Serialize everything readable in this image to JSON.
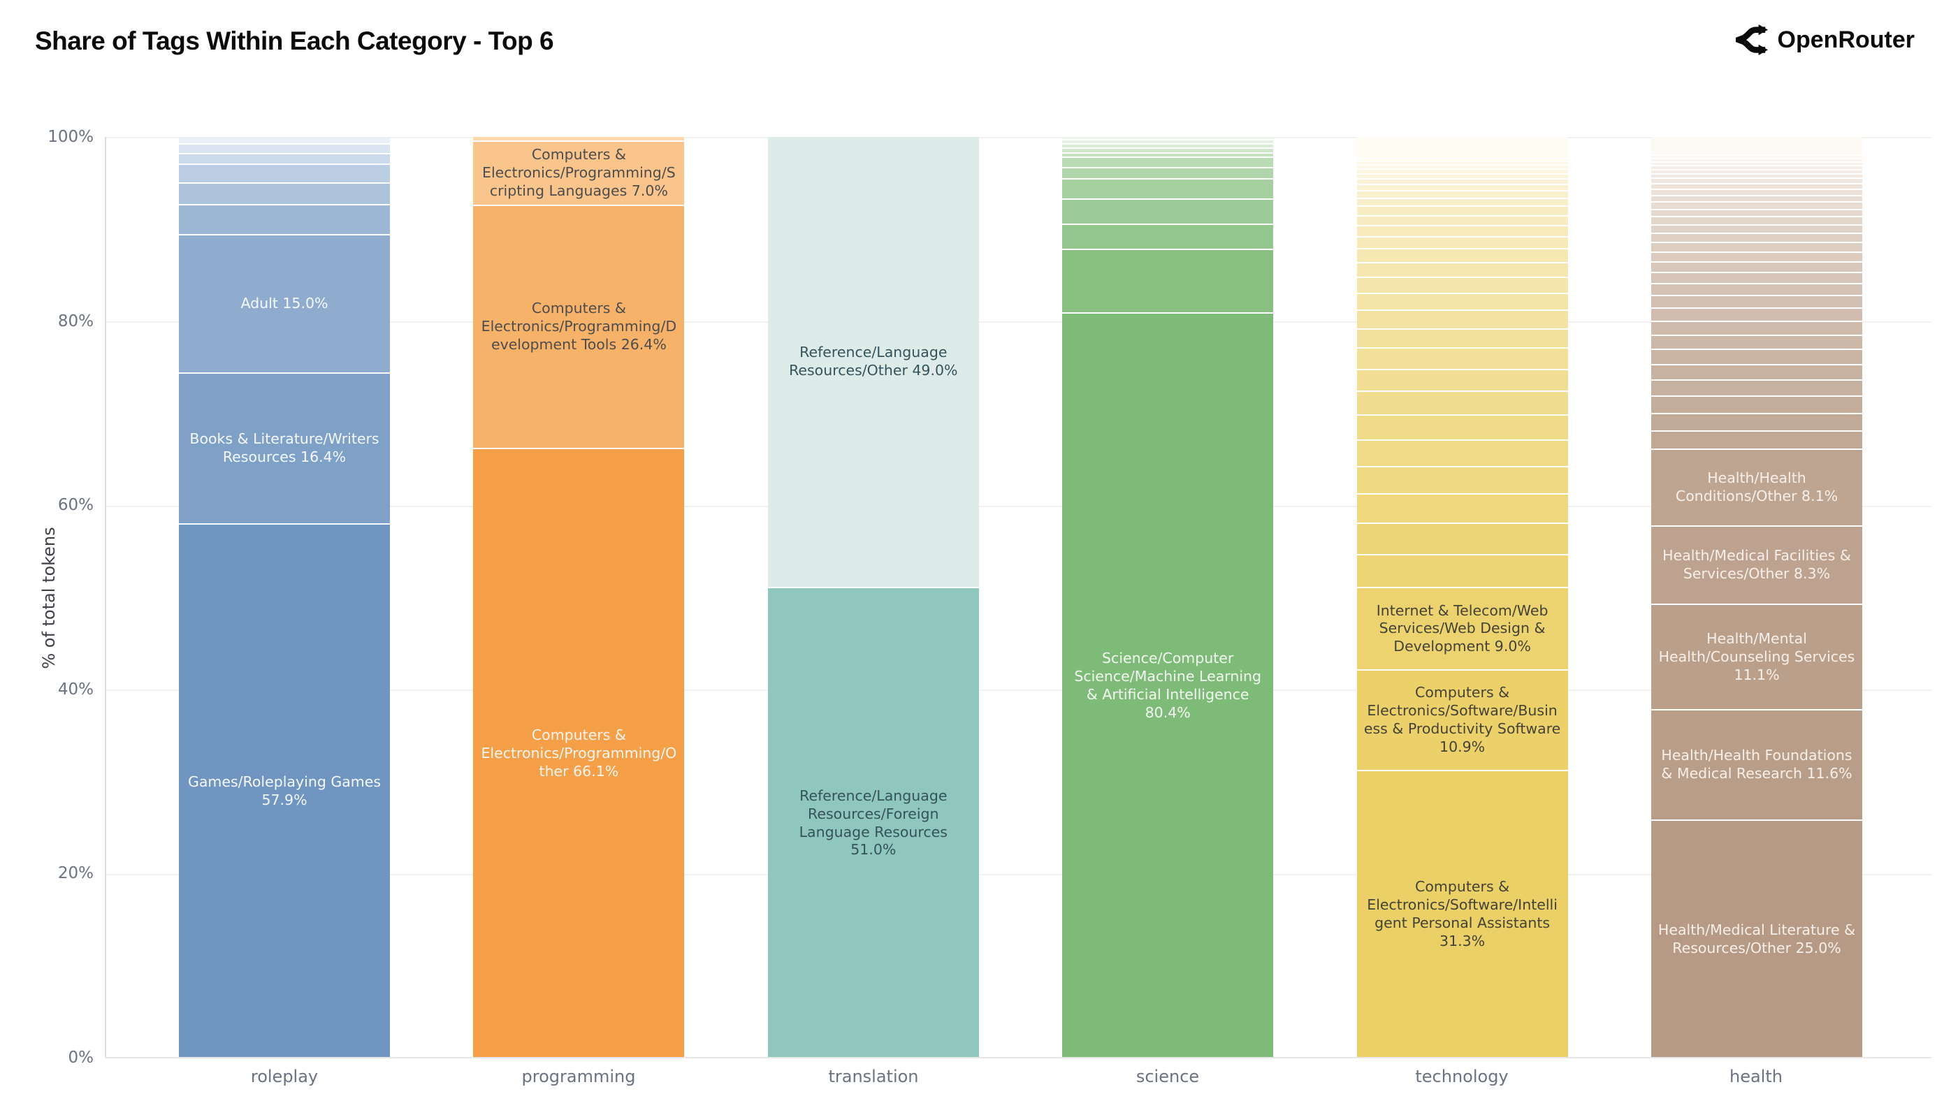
{
  "header": {
    "title": "Share of Tags Within Each Category - Top 6",
    "brand": "OpenRouter"
  },
  "y_axis": {
    "title": "% of total tokens",
    "ticks": [
      "0%",
      "20%",
      "40%",
      "60%",
      "80%",
      "100%"
    ]
  },
  "chart_data": {
    "type": "bar",
    "stacked": true,
    "percent_stack": true,
    "title": "Share of Tags Within Each Category - Top 6",
    "xlabel": "",
    "ylabel": "% of total tokens",
    "ylim": [
      0,
      100
    ],
    "grid": "horizontal",
    "legend": "none",
    "categories": [
      "roleplay",
      "programming",
      "translation",
      "science",
      "technology",
      "health"
    ],
    "bars": [
      {
        "category": "roleplay",
        "base_color": "#7095c0",
        "light_color": "#eaf0f8",
        "segments": [
          {
            "label": "Games/Roleplaying Games",
            "pct": 57.9,
            "text_color": "#f5f8fc"
          },
          {
            "label": "Books & Literature/Writers Resources",
            "pct": 16.4,
            "text_color": "#f5f8fc"
          },
          {
            "label": "Adult",
            "pct": 15.0,
            "text_color": "#f5f8fc"
          },
          {
            "pct": 3.3
          },
          {
            "pct": 2.3
          },
          {
            "pct": 2.1
          },
          {
            "pct": 1.1
          },
          {
            "pct": 1.1
          },
          {
            "pct": 0.8
          }
        ]
      },
      {
        "category": "programming",
        "base_color": "#f59f49",
        "light_color": "#fcd8ad",
        "segments": [
          {
            "label": "Computers & Electronics/Programming/Other",
            "pct": 66.1,
            "text_color": "#fdf6ee"
          },
          {
            "label": "Computers & Electronics/Programming/Development Tools",
            "pct": 26.4,
            "text_color": "#4d4d4d"
          },
          {
            "label": "Computers & Electronics/Programming/Scripting Languages",
            "pct": 7.0,
            "text_color": "#4d4d4d"
          },
          {
            "pct": 0.5
          }
        ]
      },
      {
        "category": "translation",
        "base_color": "#8fc6bd",
        "light_color": "#ddece9",
        "segments": [
          {
            "label": "Reference/Language Resources/Foreign Language Resources",
            "pct": 51.0,
            "text_color": "#35535c"
          },
          {
            "label": "Reference/Language Resources/Other",
            "pct": 49.0,
            "text_color": "#35535c"
          }
        ]
      },
      {
        "category": "science",
        "base_color": "#7fbb78",
        "light_color": "#edf6ea",
        "segments": [
          {
            "label": "Science/Computer Science/Machine Learning & Artificial Intelligence",
            "pct": 80.4,
            "text_color": "#f2f9f0"
          },
          {
            "pct": 6.9
          },
          {
            "pct": 2.7
          },
          {
            "pct": 2.7
          },
          {
            "pct": 2.2
          },
          {
            "pct": 1.2
          },
          {
            "pct": 1.1
          },
          {
            "pct": 0.5
          },
          {
            "pct": 0.5
          },
          {
            "pct": 0.45
          },
          {
            "pct": 0.45
          },
          {
            "pct": 0.4
          }
        ]
      },
      {
        "category": "technology",
        "base_color": "#ebd067",
        "light_color": "#fefcf2",
        "segments": [
          {
            "label": "Computers & Electronics/Software/Intelligent Personal Assistants",
            "pct": 31.3,
            "text_color": "#454237"
          },
          {
            "label": "Computers & Electronics/Software/Business & Productivity Software",
            "pct": 10.9,
            "text_color": "#454237"
          },
          {
            "label": "Internet & Telecom/Web Services/Web Design & Development",
            "pct": 9.0,
            "text_color": "#454237"
          },
          {
            "pct": 3.6
          },
          {
            "pct": 3.4
          },
          {
            "pct": 3.2
          },
          {
            "pct": 3.0
          },
          {
            "pct": 2.9
          },
          {
            "pct": 2.7
          },
          {
            "pct": 2.6
          },
          {
            "pct": 2.4
          },
          {
            "pct": 2.3
          },
          {
            "pct": 2.1
          },
          {
            "pct": 2.0
          },
          {
            "pct": 1.9
          },
          {
            "pct": 1.7
          },
          {
            "pct": 1.6
          },
          {
            "pct": 1.5
          },
          {
            "pct": 1.35
          },
          {
            "pct": 1.2
          },
          {
            "pct": 1.1
          },
          {
            "pct": 1.0
          },
          {
            "pct": 0.9
          },
          {
            "pct": 0.8
          },
          {
            "pct": 0.7
          },
          {
            "pct": 0.6
          },
          {
            "pct": 0.55
          },
          {
            "pct": 0.5
          },
          {
            "pct": 0.45
          },
          {
            "pct": 0.4
          },
          {
            "pct": 0.35
          },
          {
            "pct": 2.4
          }
        ]
      },
      {
        "category": "health",
        "base_color": "#b69a85",
        "light_color": "#fdf9f5",
        "segments": [
          {
            "label": "Health/Medical Literature & Resources/Other",
            "pct": 25.0,
            "text_color": "#f7efe9"
          },
          {
            "label": "Health/Health Foundations & Medical Research",
            "pct": 11.6,
            "text_color": "#f7efe9"
          },
          {
            "label": "Health/Mental Health/Counseling Services",
            "pct": 11.1,
            "text_color": "#f7efe9"
          },
          {
            "label": "Health/Medical Facilities & Services/Other",
            "pct": 8.3,
            "text_color": "#f7efe9"
          },
          {
            "label": "Health/Health Conditions/Other",
            "pct": 8.1,
            "text_color": "#f7efe9"
          },
          {
            "pct": 1.9
          },
          {
            "pct": 1.85
          },
          {
            "pct": 1.8
          },
          {
            "pct": 1.7
          },
          {
            "pct": 1.65
          },
          {
            "pct": 1.6
          },
          {
            "pct": 1.5
          },
          {
            "pct": 1.45
          },
          {
            "pct": 1.4
          },
          {
            "pct": 1.3
          },
          {
            "pct": 1.25
          },
          {
            "pct": 1.2
          },
          {
            "pct": 1.1
          },
          {
            "pct": 1.05
          },
          {
            "pct": 1.0
          },
          {
            "pct": 0.95
          },
          {
            "pct": 0.9
          },
          {
            "pct": 0.85
          },
          {
            "pct": 0.8
          },
          {
            "pct": 0.75
          },
          {
            "pct": 0.7
          },
          {
            "pct": 0.65
          },
          {
            "pct": 0.6
          },
          {
            "pct": 0.55
          },
          {
            "pct": 0.5
          },
          {
            "pct": 0.45
          },
          {
            "pct": 0.4
          },
          {
            "pct": 0.4
          },
          {
            "pct": 0.35
          },
          {
            "pct": 0.35
          },
          {
            "pct": 2.0
          }
        ]
      }
    ]
  }
}
